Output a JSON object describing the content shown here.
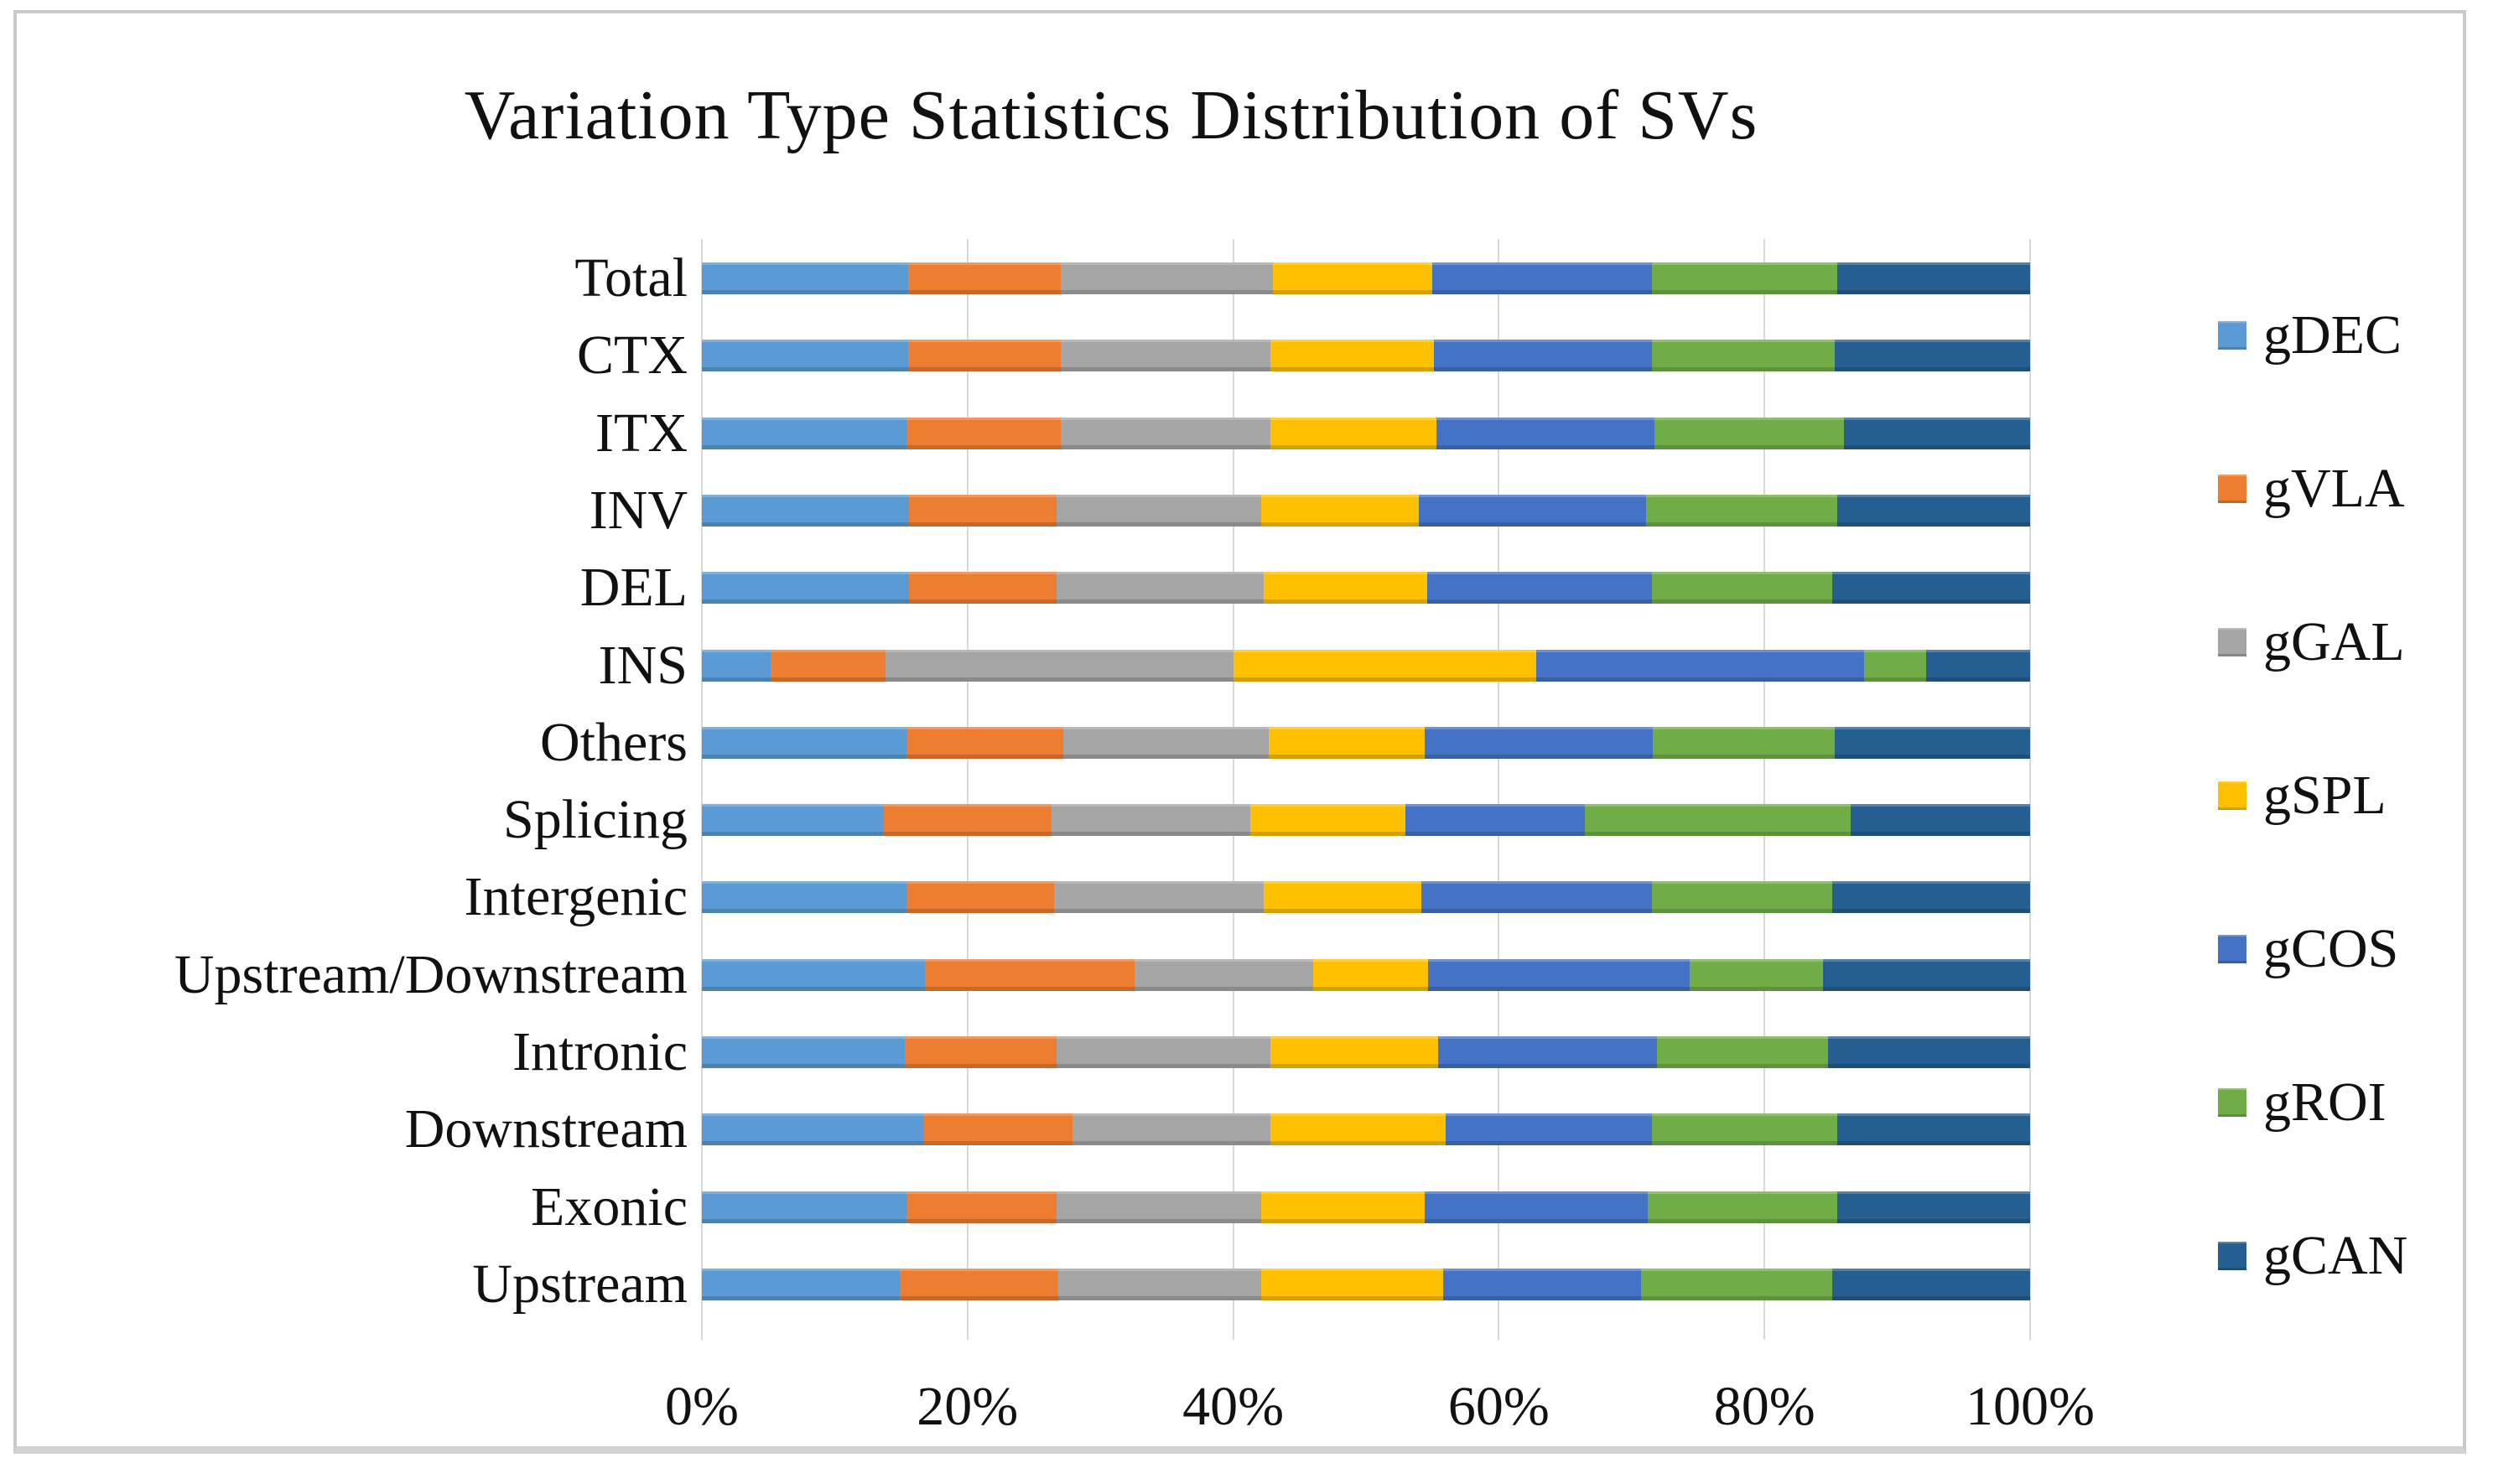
{
  "chart_data": {
    "type": "bar",
    "variant": "horizontal-stacked-100pct",
    "title": "Variation Type Statistics Distribution of SVs",
    "categories": [
      "Total",
      "CTX",
      "ITX",
      "INV",
      "DEL",
      "INS",
      "Others",
      "Splicing",
      "Intergenic",
      "Upstream/Downstream",
      "Intronic",
      "Downstream",
      "Exonic",
      "Upstream"
    ],
    "series": [
      {
        "name": "gDEC",
        "color": "#5B9BD5",
        "values": [
          15.5,
          15.5,
          15.4,
          15.6,
          15.6,
          5.2,
          15.4,
          13.7,
          15.4,
          16.8,
          15.3,
          16.7,
          15.4,
          14.9
        ]
      },
      {
        "name": "gVLA",
        "color": "#ED7D31",
        "values": [
          11.5,
          11.5,
          11.6,
          11.1,
          11.1,
          8.6,
          11.8,
          12.6,
          11.1,
          15.8,
          11.4,
          11.2,
          11.3,
          11.9
        ]
      },
      {
        "name": "gGAL",
        "color": "#A5A5A5",
        "values": [
          16.0,
          15.8,
          15.8,
          15.4,
          15.6,
          26.2,
          15.5,
          15.0,
          15.8,
          13.4,
          16.1,
          14.9,
          15.4,
          15.3
        ]
      },
      {
        "name": "gSPL",
        "color": "#FFC000",
        "values": [
          12.0,
          12.3,
          12.5,
          11.9,
          12.3,
          22.8,
          11.7,
          11.7,
          11.9,
          8.7,
          12.6,
          13.2,
          12.3,
          13.7
        ]
      },
      {
        "name": "gCOS",
        "color": "#4472C4",
        "values": [
          16.5,
          16.4,
          16.4,
          17.1,
          16.9,
          24.7,
          17.2,
          13.5,
          17.3,
          19.7,
          16.5,
          15.5,
          16.8,
          14.9
        ]
      },
      {
        "name": "gROI",
        "color": "#70AD47",
        "values": [
          14.0,
          13.8,
          14.3,
          14.4,
          13.6,
          4.7,
          13.7,
          20.0,
          13.6,
          10.0,
          12.9,
          14.0,
          14.3,
          14.4
        ]
      },
      {
        "name": "gCAN",
        "color": "#255E91",
        "values": [
          14.5,
          14.7,
          14.0,
          14.5,
          14.9,
          7.8,
          14.7,
          13.5,
          14.9,
          15.6,
          15.2,
          14.5,
          14.5,
          14.9
        ]
      }
    ],
    "xlabel": "",
    "ylabel": "",
    "x_axis": {
      "min": 0,
      "max": 100,
      "tick_labels": [
        "0%",
        "20%",
        "40%",
        "60%",
        "80%",
        "100%"
      ],
      "tick_values": [
        0,
        20,
        40,
        60,
        80,
        100
      ]
    },
    "grid": "vertical gridlines every 20%",
    "legend_position": "right",
    "styles": {
      "gridline_color": "#d9d9d9",
      "frame_border_color": "#c9c9c9",
      "text_color": "#111111",
      "background_color": "#ffffff"
    }
  }
}
